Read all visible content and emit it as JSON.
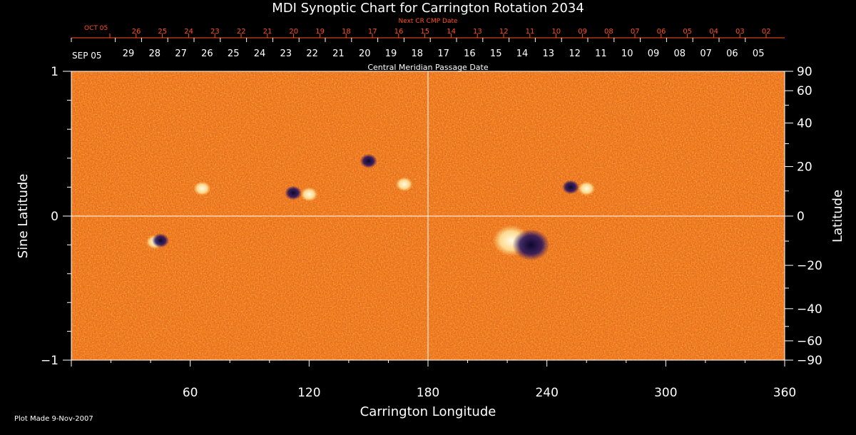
{
  "chart_data": {
    "type": "heatmap",
    "title": "MDI Synoptic Chart for Carrington Rotation 2034",
    "xlabel": "Carrington Longitude",
    "ylabel_left": "Sine Latitude",
    "ylabel_right": "Latitude",
    "xlim": [
      0,
      360
    ],
    "ylim": [
      -1,
      1
    ],
    "x_ticks": [
      60,
      120,
      180,
      240,
      300,
      360
    ],
    "y_ticks_left": [
      1,
      0,
      -1
    ],
    "y_ticks_right": [
      90,
      60,
      40,
      20,
      0,
      -20,
      -40,
      -60,
      -90
    ],
    "y_ticks_right_labels": [
      "90",
      "60",
      "40",
      "20",
      "0",
      "−20",
      "−40",
      "−60",
      "−90"
    ],
    "top_axis_label": "Next CR CMP Date",
    "top_axis_month": "OCT 05",
    "top_axis_days": [
      "26",
      "25",
      "24",
      "23",
      "22",
      "21",
      "20",
      "19",
      "18",
      "17",
      "16",
      "15",
      "14",
      "13",
      "12",
      "11",
      "10",
      "09",
      "08",
      "07",
      "06",
      "05",
      "04",
      "03",
      "02"
    ],
    "bottom_axis_label": "Central Meridian Passage Date",
    "bottom_axis_month": "SEP 05",
    "bottom_axis_days": [
      "29",
      "28",
      "27",
      "26",
      "25",
      "24",
      "23",
      "22",
      "21",
      "20",
      "19",
      "18",
      "17",
      "16",
      "15",
      "14",
      "13",
      "12",
      "11",
      "10",
      "09",
      "08",
      "07",
      "06",
      "05"
    ],
    "grid": "center crosshair at longitude 180 and sine latitude 0",
    "colors": {
      "background": "#000000",
      "field_base": "#e65a10",
      "positive_polarity": "#fff6d0",
      "negative_polarity": "#1a1050",
      "top_axis_text": "#ff5020",
      "text": "#ffffff"
    },
    "active_regions": [
      {
        "lon": 222,
        "sinlat": -0.17,
        "polarity": "positive"
      },
      {
        "lon": 232,
        "sinlat": -0.2,
        "polarity": "negative"
      },
      {
        "lon": 120,
        "sinlat": 0.15,
        "polarity": "positive"
      },
      {
        "lon": 112,
        "sinlat": 0.16,
        "polarity": "negative"
      },
      {
        "lon": 168,
        "sinlat": 0.22,
        "polarity": "positive"
      },
      {
        "lon": 150,
        "sinlat": 0.38,
        "polarity": "negative"
      },
      {
        "lon": 42,
        "sinlat": -0.18,
        "polarity": "positive"
      },
      {
        "lon": 45,
        "sinlat": -0.17,
        "polarity": "negative"
      },
      {
        "lon": 66,
        "sinlat": 0.19,
        "polarity": "positive"
      },
      {
        "lon": 260,
        "sinlat": 0.19,
        "polarity": "positive"
      },
      {
        "lon": 252,
        "sinlat": 0.2,
        "polarity": "negative"
      }
    ]
  },
  "footer": {
    "plot_made": "Plot Made  9-Nov-2007"
  }
}
